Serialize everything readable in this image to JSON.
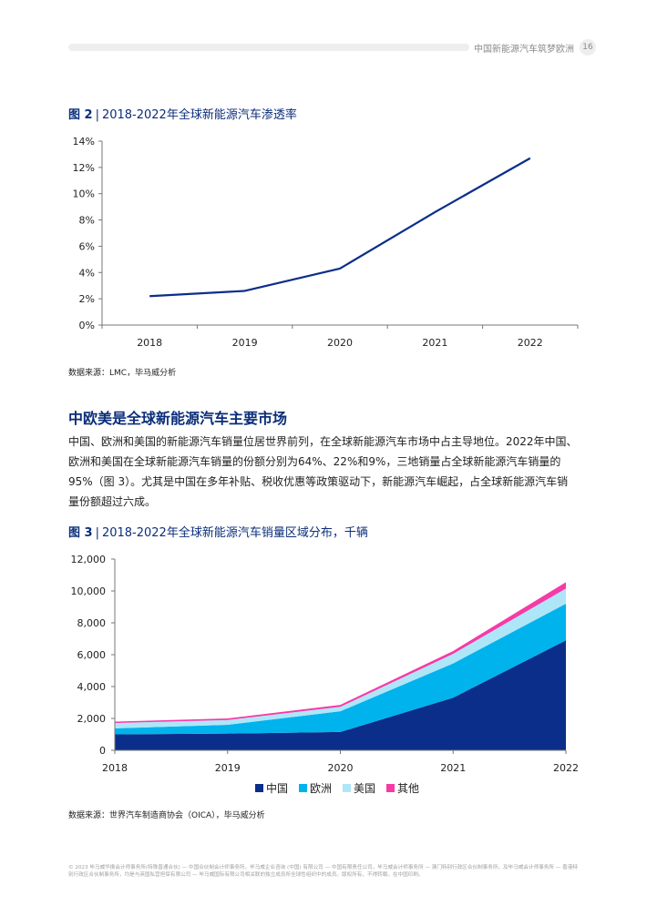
{
  "header": {
    "title": "中国新能源汽车筑梦欧洲",
    "page": "16"
  },
  "figure2": {
    "label": "图 2",
    "sep": "|",
    "title": "2018-2022年全球新能源汽车渗透率",
    "source": "数据来源：LMC，毕马威分析"
  },
  "section": {
    "heading": "中欧美是全球新能源汽车主要市场",
    "paragraph": "中国、欧洲和美国的新能源汽车销量位居世界前列，在全球新能源汽车市场中占主导地位。2022年中国、欧洲和美国在全球新能源汽车销量的份额分别为64%、22%和9%，三地销量占全球新能源汽车销量的95%（图 3）。尤其是中国在多年补贴、税收优惠等政策驱动下，新能源汽车崛起，占全球新能源汽车销量份额超过六成。"
  },
  "figure3": {
    "label": "图 3",
    "sep": "|",
    "title": "2018-2022年全球新能源汽车销量区域分布，千辆",
    "source": "数据来源：世界汽车制造商协会（OICA），毕马威分析"
  },
  "footer": {
    "text": "© 2023 毕马威华振会计师事务所(特殊普通合伙) — 中国合伙制会计师事务所，毕马威企业咨询 (中国) 有限公司 — 中国有限责任公司，毕马威会计师事务所 — 澳门特别行政区合伙制事务所，及毕马威会计师事务所 — 香港特别行政区合伙制事务所，均是与英国私营担保有限公司 — 毕马威国际有限公司相关联的独立成员所全球性组织中的成员。版权所有，不得转载。在中国印刷。"
  },
  "chart_data": [
    {
      "type": "line",
      "title": "2018-2022年全球新能源汽车渗透率",
      "x": [
        "2018",
        "2019",
        "2020",
        "2021",
        "2022"
      ],
      "series": [
        {
          "values": [
            2.2,
            2.6,
            4.3,
            8.6,
            12.7
          ],
          "color": "#0b2e8a"
        }
      ],
      "yticks": [
        "0%",
        "2%",
        "4%",
        "6%",
        "8%",
        "10%",
        "12%",
        "14%"
      ],
      "ylim": [
        0,
        14
      ],
      "grid": false
    },
    {
      "type": "area",
      "stacked": true,
      "title": "2018-2022年全球新能源汽车销量区域分布，千辆",
      "x": [
        "2018",
        "2019",
        "2020",
        "2021",
        "2022"
      ],
      "series": [
        {
          "name": "中国",
          "values": [
            1000,
            1050,
            1150,
            3300,
            6900
          ],
          "color": "#0b2e8a"
        },
        {
          "name": "欧洲",
          "values": [
            380,
            550,
            1300,
            2150,
            2300
          ],
          "color": "#00b3ec"
        },
        {
          "name": "美国",
          "values": [
            330,
            300,
            280,
            600,
            950
          ],
          "color": "#aee6f8"
        },
        {
          "name": "其他",
          "values": [
            90,
            100,
            120,
            180,
            400
          ],
          "color": "#f53ba6"
        }
      ],
      "yticks": [
        "0",
        "2,000",
        "4,000",
        "6,000",
        "8,000",
        "10,000",
        "12,000"
      ],
      "ylim": [
        0,
        12000
      ],
      "legend": "bottom",
      "grid": false
    }
  ]
}
